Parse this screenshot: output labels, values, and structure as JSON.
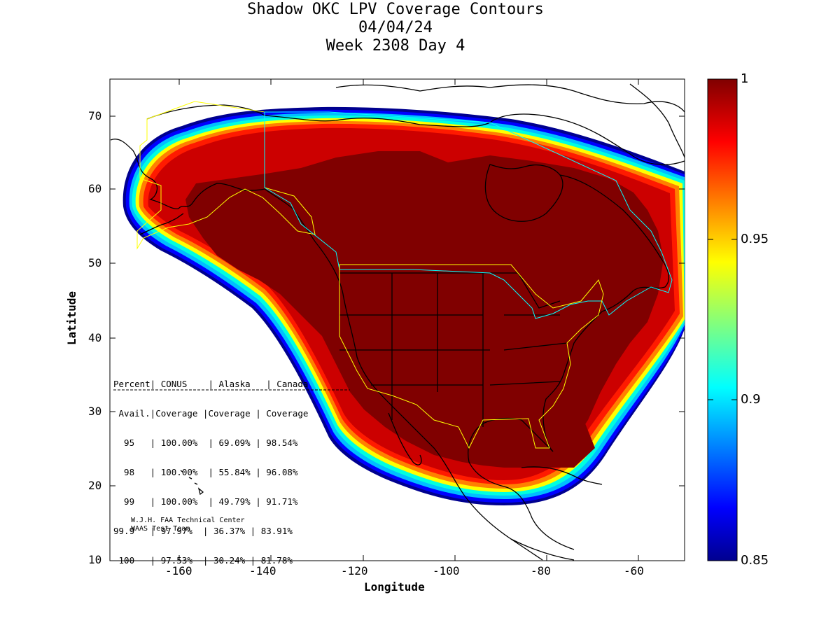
{
  "title": {
    "line1": "Shadow OKC LPV Coverage Contours",
    "line2": "04/04/24",
    "line3": "Week 2308 Day 4"
  },
  "axes": {
    "xlabel": "Longitude",
    "ylabel": "Latitude",
    "xticks": [
      "-160",
      "-140",
      "-120",
      "-100",
      "-80",
      "-60"
    ],
    "yticks": [
      "70",
      "60",
      "50",
      "40",
      "30",
      "20",
      "10"
    ],
    "xlim": [
      -175,
      -50
    ],
    "ylim": [
      10,
      75
    ]
  },
  "colorbar": {
    "ticks": [
      "1",
      "0.95",
      "0.9",
      "0.85"
    ],
    "range": [
      0.85,
      1
    ],
    "colormap": "jet"
  },
  "stats_table": {
    "header1": "Percent| CONUS    | Alaska   | Canada",
    "header2": " Avail.|Coverage |Coverage | Coverage",
    "rows": [
      "  95   | 100.00%  | 69.09% | 98.54%",
      "  98   | 100.00%  | 55.84% | 96.08%",
      "  99   | 100.00%  | 49.79% | 91.71%",
      "99.9   | 97.97%  | 36.37% | 83.91%",
      " 100   | 97.53%  | 30.24% | 81.78%"
    ]
  },
  "credit": {
    "line1": "W.J.H. FAA Technical Center",
    "line2": "WAAS Test Team"
  },
  "colors": {
    "dark_red": "#800000",
    "red": "#cc0000",
    "bright_red": "#ff1a00",
    "orange": "#ff8000",
    "yellow": "#ffff00",
    "cyan": "#00ffff",
    "blue": "#0040ff",
    "navy": "#000090",
    "border_yellow": "#ffff00",
    "border_cyan": "#00ffff"
  }
}
